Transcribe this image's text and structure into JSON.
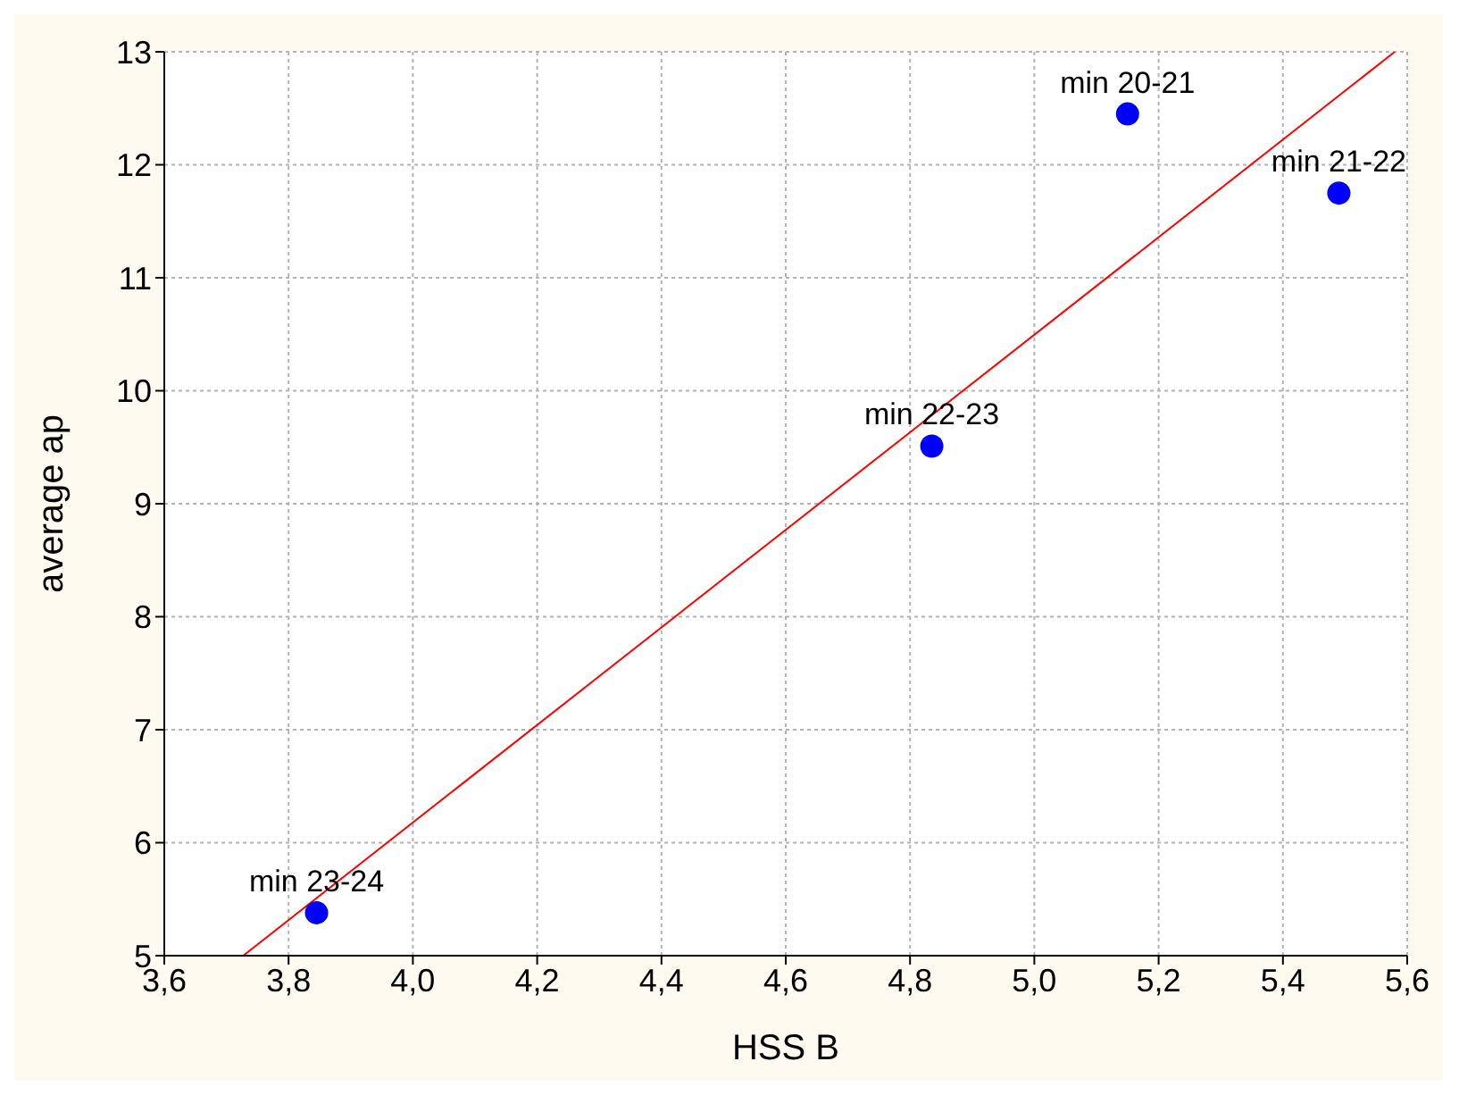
{
  "chart_data": {
    "type": "scatter",
    "xlabel": "HSS B",
    "ylabel": "average ap",
    "x": [
      3.845,
      4.835,
      5.15,
      5.49
    ],
    "series": [
      {
        "color": "#0000ff",
        "values": [
          5.38,
          9.51,
          12.45,
          11.75
        ]
      },
      {
        "type": "line",
        "color": "#ff0000",
        "marker": "none",
        "x": [
          3.727,
          5.58
        ],
        "values": [
          5,
          13
        ]
      }
    ],
    "annotations": [
      {
        "text": "min 23-24",
        "x": 3.845,
        "y": 5.38
      },
      {
        "text": "min 22-23",
        "x": 4.835,
        "y": 9.51
      },
      {
        "text": "min 20-21",
        "x": 5.15,
        "y": 12.45
      },
      {
        "text": "min 21-22",
        "x": 5.49,
        "y": 11.75
      }
    ],
    "xlim": [
      3.6,
      5.6
    ],
    "xticks": [
      {
        "value": 3.6,
        "label": "3,6"
      },
      {
        "value": 3.8,
        "label": "3,8"
      },
      {
        "value": 4.0,
        "label": "4,0"
      },
      {
        "value": 4.2,
        "label": "4,2"
      },
      {
        "value": 4.4,
        "label": "4,4"
      },
      {
        "value": 4.6,
        "label": "4,6"
      },
      {
        "value": 4.8,
        "label": "4,8"
      },
      {
        "value": 5.0,
        "label": "5,0"
      },
      {
        "value": 5.2,
        "label": "5,2"
      },
      {
        "value": 5.4,
        "label": "5,4"
      },
      {
        "value": 5.6,
        "label": "5,6"
      }
    ],
    "ylim": [
      5,
      13
    ],
    "yticks": [
      5,
      6,
      7,
      8,
      9,
      10,
      11,
      12,
      13
    ],
    "grid": true,
    "marker": "circle"
  }
}
